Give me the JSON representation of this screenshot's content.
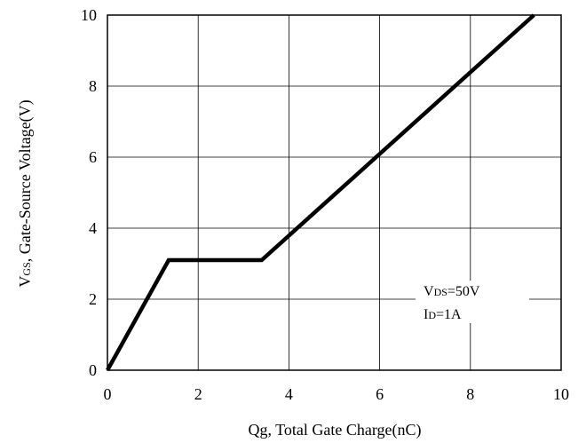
{
  "chart_data": {
    "type": "line",
    "xlabel": "Qg, Total Gate Charge(nC)",
    "ylabel_main": "V",
    "ylabel_sub": "GS",
    "ylabel_rest": ", Gate-Source Voltage(V)",
    "xlim": [
      0,
      10
    ],
    "ylim": [
      0,
      10
    ],
    "xticks": [
      0,
      2,
      4,
      6,
      8,
      10
    ],
    "yticks": [
      0,
      2,
      4,
      6,
      8,
      10
    ],
    "grid": true,
    "series": [
      {
        "x": [
          0,
          1.35,
          3.4,
          9.4
        ],
        "y": [
          0,
          3.1,
          3.1,
          10
        ],
        "color": "#000000"
      }
    ],
    "annotation": {
      "line1_main": "V",
      "line1_sub": "DS",
      "line1_rest": "=50V",
      "line2_main": "I",
      "line2_sub": "D",
      "line2_rest": "=1A"
    }
  }
}
